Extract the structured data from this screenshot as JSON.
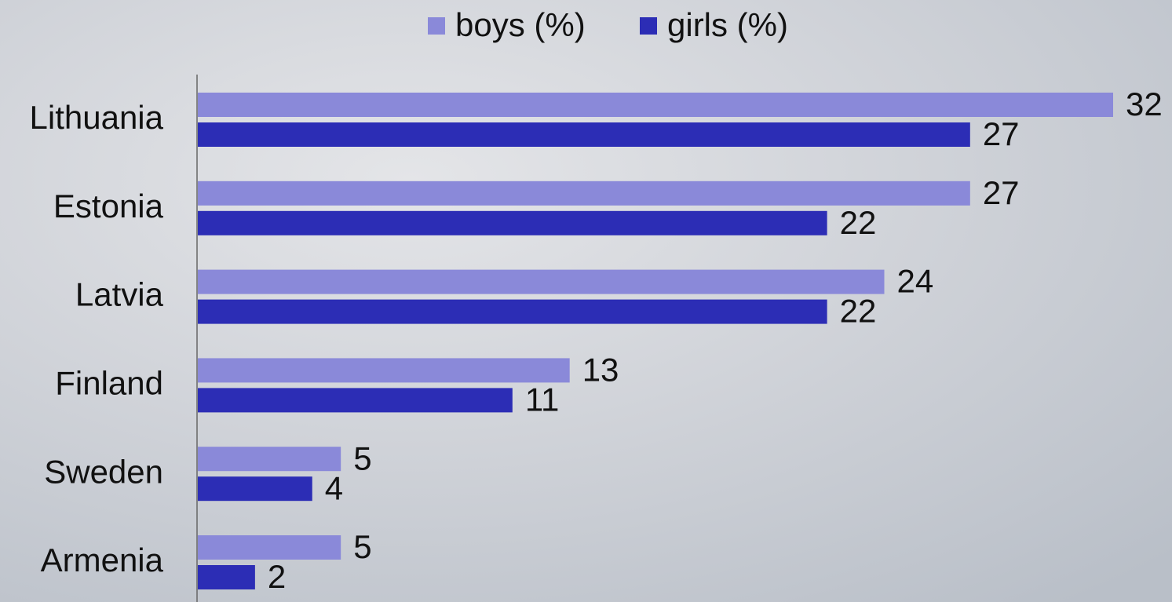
{
  "chart_data": {
    "type": "hbar",
    "categories": [
      "Lithuania",
      "Estonia",
      "Latvia",
      "Finland",
      "Sweden",
      "Armenia"
    ],
    "series": [
      {
        "name": "boys (%)",
        "color": "#8a89d9",
        "values": [
          32,
          27,
          24,
          13,
          5,
          5
        ]
      },
      {
        "name": "girls (%)",
        "color": "#2c2db5",
        "values": [
          27,
          22,
          22,
          11,
          4,
          2
        ]
      }
    ],
    "legend": "top"
  }
}
